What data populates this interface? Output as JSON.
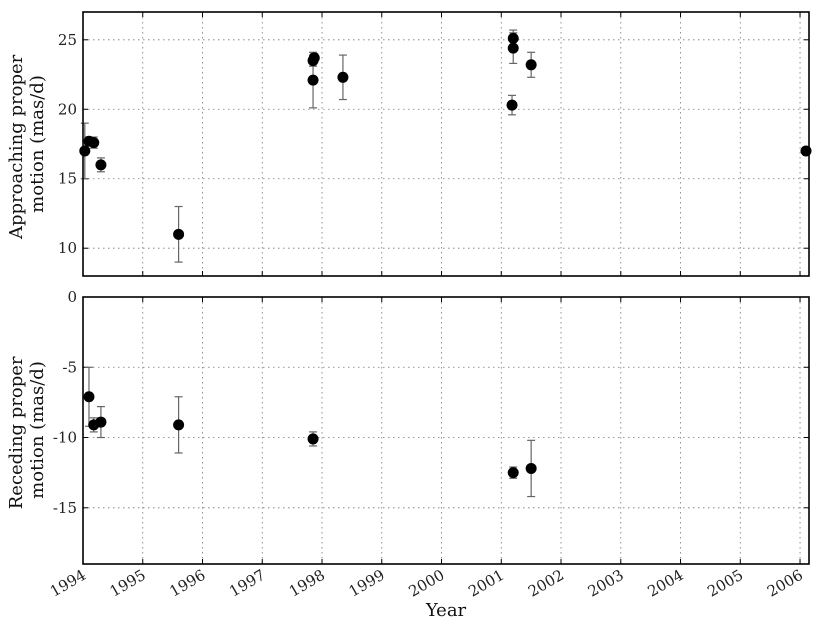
{
  "chart_data": [
    {
      "type": "scatter",
      "panel": "top",
      "title": "",
      "xlabel": "",
      "ylabel_lines": [
        "Approaching proper",
        "motion (mas/d)"
      ],
      "xlim": [
        1994.0,
        2006.15
      ],
      "ylim": [
        8,
        27
      ],
      "yticks": [
        10,
        15,
        20,
        25
      ],
      "grid": true,
      "errorbars": true,
      "series": [
        {
          "points": [
            {
              "x": 1994.03,
              "y": 17.0,
              "err": 2.0
            },
            {
              "x": 1994.1,
              "y": 17.7,
              "err": 0.3
            },
            {
              "x": 1994.18,
              "y": 17.6,
              "err": 0.4
            },
            {
              "x": 1994.3,
              "y": 16.0,
              "err": 0.5
            },
            {
              "x": 1995.6,
              "y": 11.0,
              "err": 2.0
            },
            {
              "x": 1997.85,
              "y": 23.5,
              "err": 0.4
            },
            {
              "x": 1997.87,
              "y": 23.7,
              "err": 0.3
            },
            {
              "x": 1997.85,
              "y": 22.1,
              "err": 2.0
            },
            {
              "x": 1998.35,
              "y": 22.3,
              "err": 1.6
            },
            {
              "x": 2001.2,
              "y": 25.1,
              "err": 0.6
            },
            {
              "x": 2001.2,
              "y": 24.4,
              "err": 1.1
            },
            {
              "x": 2001.18,
              "y": 20.3,
              "err": 0.7
            },
            {
              "x": 2001.5,
              "y": 23.2,
              "err": 0.9
            },
            {
              "x": 2006.1,
              "y": 17.0,
              "err": 0.2
            }
          ]
        }
      ]
    },
    {
      "type": "scatter",
      "panel": "bottom",
      "title": "",
      "xlabel": "Year",
      "ylabel_lines": [
        "Receding proper",
        "motion (mas/d)"
      ],
      "xlim": [
        1994.0,
        2006.15
      ],
      "ylim": [
        -19,
        0
      ],
      "yticks": [
        0,
        -5,
        -10,
        -15
      ],
      "xticks": [
        1994,
        1995,
        1996,
        1997,
        1998,
        1999,
        2000,
        2001,
        2002,
        2003,
        2004,
        2005,
        2006
      ],
      "grid": true,
      "errorbars": true,
      "series": [
        {
          "points": [
            {
              "x": 1994.1,
              "y": -7.1,
              "err": 2.1
            },
            {
              "x": 1994.18,
              "y": -9.1,
              "err": 0.5
            },
            {
              "x": 1994.3,
              "y": -8.9,
              "err": 1.1
            },
            {
              "x": 1995.6,
              "y": -9.1,
              "err": 2.0
            },
            {
              "x": 1997.85,
              "y": -10.1,
              "err": 0.5
            },
            {
              "x": 2001.2,
              "y": -12.5,
              "err": 0.4
            },
            {
              "x": 2001.5,
              "y": -12.2,
              "err": 2.0
            }
          ]
        }
      ]
    }
  ]
}
